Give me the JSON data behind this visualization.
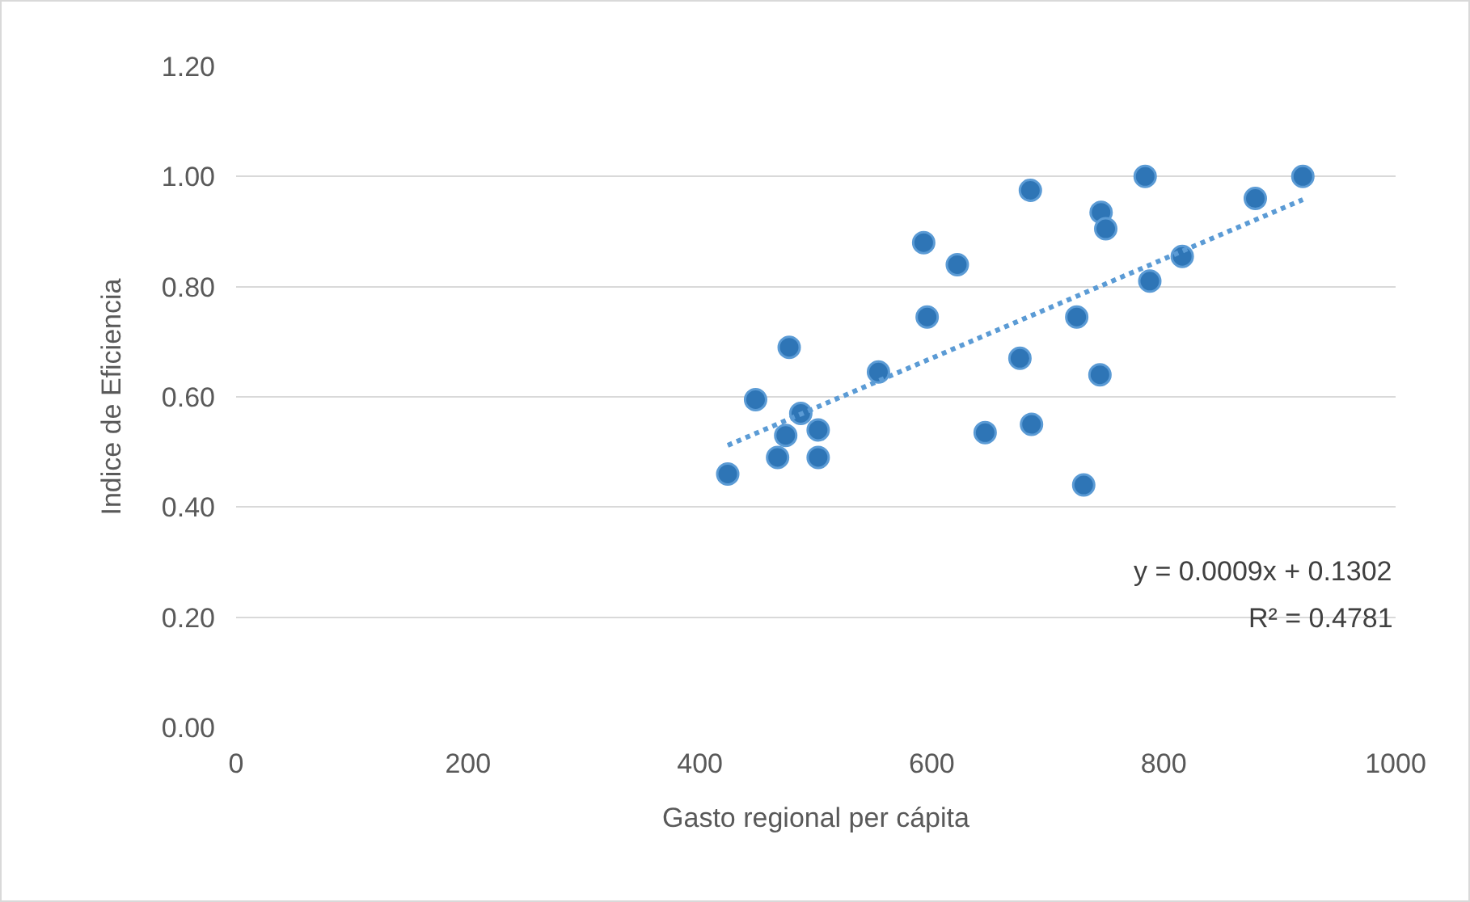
{
  "chart_data": {
    "type": "scatter",
    "xlabel": "Gasto regional per cápita",
    "ylabel": "Indice de Eficiencia",
    "series": [
      {
        "type": "scatter",
        "color": "#2e75b6",
        "marker": "circle",
        "x": [
          424,
          448,
          477,
          474,
          467,
          487,
          502,
          502,
          554,
          593,
          596,
          622,
          646,
          676,
          685,
          686,
          725,
          731,
          745,
          746,
          750,
          784,
          788,
          816,
          879,
          920
        ],
        "values": [
          0.46,
          0.595,
          0.69,
          0.53,
          0.49,
          0.57,
          0.54,
          0.49,
          0.645,
          0.88,
          0.745,
          0.84,
          0.535,
          0.67,
          0.975,
          0.55,
          0.745,
          0.44,
          0.64,
          0.935,
          0.905,
          1.0,
          0.81,
          0.855,
          0.96,
          1.0
        ]
      },
      {
        "type": "line",
        "color": "#5b9bd5",
        "line_style": "dotted",
        "marker": "none",
        "x": [
          424,
          920
        ],
        "values": [
          0.512,
          0.958
        ]
      }
    ],
    "xlim": [
      0,
      1000
    ],
    "xticks": [
      0,
      200,
      400,
      600,
      800,
      1000
    ],
    "ylim": [
      0,
      1.2
    ],
    "yticks": [
      {
        "value": 0,
        "label": "0.00"
      },
      {
        "value": 0.2,
        "label": "0.20"
      },
      {
        "value": 0.4,
        "label": "0.40"
      },
      {
        "value": 0.6,
        "label": "0.60"
      },
      {
        "value": 0.8,
        "label": "0.80"
      },
      {
        "value": 1.0,
        "label": "1.00"
      },
      {
        "value": 1.2,
        "label": "1.20"
      }
    ],
    "grid": "y",
    "legend": false,
    "annotations": [
      "y = 0.0009x + 0.1302",
      "R² = 0.4781"
    ]
  }
}
